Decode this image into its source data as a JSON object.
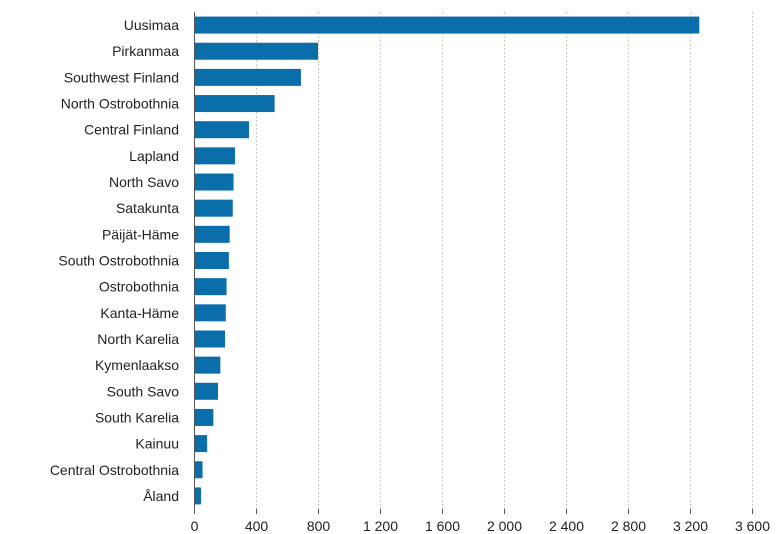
{
  "chart_data": {
    "type": "bar",
    "orientation": "horizontal",
    "title": "",
    "xlabel": "",
    "ylabel": "",
    "xlim": [
      0,
      3600
    ],
    "ticks": [
      0,
      400,
      800,
      1200,
      1600,
      2000,
      2400,
      2800,
      3200,
      3600
    ],
    "tick_labels": [
      "0",
      "400",
      "800",
      "1 200",
      "1 600",
      "2 000",
      "2 400",
      "2 800",
      "3 200",
      "3 600"
    ],
    "grid": "vertical dotted",
    "bar_color": "#0a6eab",
    "categories": [
      "Uusimaa",
      "Pirkanmaa",
      "Southwest Finland",
      "North Ostrobothnia",
      "Central Finland",
      "Lapland",
      "North Savo",
      "Satakunta",
      "Päijät-Häme",
      "South Ostrobothnia",
      "Ostrobothnia",
      "Kanta-Häme",
      "North Karelia",
      "Kymenlaakso",
      "South Savo",
      "South Karelia",
      "Kainuu",
      "Central Ostrobothnia",
      "Åland"
    ],
    "values": [
      3260,
      800,
      690,
      520,
      355,
      265,
      255,
      250,
      230,
      225,
      210,
      205,
      200,
      170,
      155,
      125,
      85,
      55,
      45
    ]
  }
}
